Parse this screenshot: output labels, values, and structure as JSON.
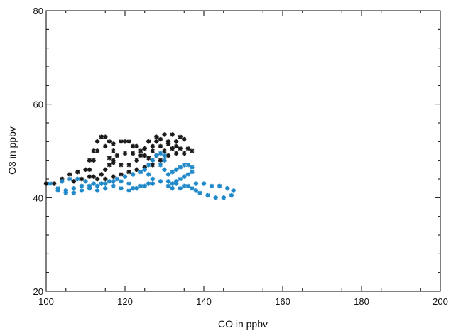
{
  "chart_data": {
    "type": "scatter",
    "title": "",
    "xlabel": "CO in ppbv",
    "ylabel": "O3 in ppbv",
    "xlim": [
      100,
      200
    ],
    "ylim": [
      20,
      80
    ],
    "x_ticks": [
      100,
      120,
      140,
      160,
      180,
      200
    ],
    "y_ticks": [
      20,
      40,
      60,
      80
    ],
    "grid": false,
    "legend": "none",
    "marker": "asterisk",
    "series": [
      {
        "color": "#1a1a1a",
        "points": [
          [
            100,
            43
          ],
          [
            102,
            43
          ],
          [
            104,
            44
          ],
          [
            106,
            45
          ],
          [
            108,
            45.5
          ],
          [
            110,
            46
          ],
          [
            111,
            48
          ],
          [
            112,
            50
          ],
          [
            113,
            52
          ],
          [
            114,
            53
          ],
          [
            115,
            53
          ],
          [
            116,
            52
          ],
          [
            117,
            50
          ],
          [
            117,
            48
          ],
          [
            116,
            47
          ],
          [
            115,
            46
          ],
          [
            114,
            45
          ],
          [
            112,
            44.5
          ],
          [
            111,
            46
          ],
          [
            112,
            48
          ],
          [
            113,
            50
          ],
          [
            115,
            51
          ],
          [
            117,
            51.5
          ],
          [
            119,
            52
          ],
          [
            121,
            52
          ],
          [
            123,
            51
          ],
          [
            125,
            50.5
          ],
          [
            127,
            51
          ],
          [
            128,
            52
          ],
          [
            128,
            53
          ],
          [
            130,
            53.5
          ],
          [
            132,
            53.5
          ],
          [
            134,
            53
          ],
          [
            135,
            52.5
          ],
          [
            133,
            52
          ],
          [
            131,
            51.5
          ],
          [
            129,
            51
          ],
          [
            127,
            50
          ],
          [
            125,
            49
          ],
          [
            123,
            48
          ],
          [
            121,
            47
          ],
          [
            119,
            47
          ],
          [
            117,
            47.5
          ],
          [
            116,
            48.5
          ],
          [
            118,
            49
          ],
          [
            120,
            49.5
          ],
          [
            122,
            49.5
          ],
          [
            124,
            49
          ],
          [
            126,
            48.5
          ],
          [
            128,
            49
          ],
          [
            130,
            50
          ],
          [
            132,
            50.5
          ],
          [
            134,
            50.5
          ],
          [
            136,
            50.5
          ],
          [
            137,
            50
          ],
          [
            135,
            49.5
          ],
          [
            133,
            49.5
          ],
          [
            131,
            49
          ],
          [
            129,
            48
          ],
          [
            127,
            47
          ],
          [
            125,
            46.5
          ],
          [
            123,
            46
          ],
          [
            121,
            45.5
          ],
          [
            119,
            45
          ],
          [
            117,
            44.5
          ],
          [
            115,
            44
          ],
          [
            113,
            44
          ],
          [
            111,
            44.5
          ],
          [
            109,
            44
          ],
          [
            107,
            43.5
          ],
          [
            120,
            52
          ],
          [
            122,
            51
          ],
          [
            124,
            50
          ],
          [
            126,
            52
          ],
          [
            129,
            52.5
          ],
          [
            131,
            52
          ],
          [
            133,
            51
          ]
        ]
      },
      {
        "color": "#1f88c8",
        "points": [
          [
            101,
            43
          ],
          [
            103,
            42
          ],
          [
            105,
            41.5
          ],
          [
            107,
            42
          ],
          [
            109,
            42.5
          ],
          [
            111,
            42
          ],
          [
            113,
            41.5
          ],
          [
            115,
            42
          ],
          [
            117,
            42.5
          ],
          [
            119,
            42
          ],
          [
            121,
            41.5
          ],
          [
            122,
            42
          ],
          [
            124,
            42.5
          ],
          [
            126,
            43
          ],
          [
            127,
            44
          ],
          [
            126,
            45
          ],
          [
            124,
            45.5
          ],
          [
            122,
            45
          ],
          [
            120,
            44.5
          ],
          [
            118,
            44
          ],
          [
            116,
            43.5
          ],
          [
            114,
            43
          ],
          [
            112,
            43
          ],
          [
            110,
            43.5
          ],
          [
            108,
            44
          ],
          [
            106,
            44
          ],
          [
            104,
            43.5
          ],
          [
            125,
            46
          ],
          [
            126,
            47
          ],
          [
            127,
            48
          ],
          [
            128,
            49
          ],
          [
            129,
            49.5
          ],
          [
            130,
            49
          ],
          [
            130,
            48
          ],
          [
            129,
            47
          ],
          [
            130,
            46
          ],
          [
            131,
            45
          ],
          [
            132,
            45.5
          ],
          [
            133,
            46
          ],
          [
            134,
            46.5
          ],
          [
            135,
            47
          ],
          [
            136,
            47
          ],
          [
            137,
            46.5
          ],
          [
            137,
            45.5
          ],
          [
            136,
            45
          ],
          [
            135,
            44.5
          ],
          [
            134,
            44
          ],
          [
            133,
            43.5
          ],
          [
            132,
            43
          ],
          [
            131,
            42.5
          ],
          [
            132,
            42
          ],
          [
            134,
            42
          ],
          [
            136,
            42.5
          ],
          [
            138,
            43
          ],
          [
            140,
            43
          ],
          [
            142,
            42.5
          ],
          [
            144,
            42.5
          ],
          [
            146,
            42
          ],
          [
            147.5,
            41.5
          ],
          [
            147,
            40.5
          ],
          [
            145,
            40
          ],
          [
            143,
            40
          ],
          [
            141,
            40.5
          ],
          [
            139,
            41
          ],
          [
            138,
            41.5
          ],
          [
            137,
            42
          ],
          [
            135,
            42.5
          ],
          [
            133,
            43
          ],
          [
            131,
            43.5
          ],
          [
            129,
            43.5
          ],
          [
            127,
            43
          ],
          [
            125,
            42.5
          ],
          [
            123,
            42
          ],
          [
            121,
            43
          ],
          [
            119,
            43.5
          ],
          [
            117,
            43.5
          ],
          [
            115,
            43
          ],
          [
            113,
            42.5
          ],
          [
            111,
            42.5
          ],
          [
            109,
            41.5
          ],
          [
            107,
            41
          ],
          [
            105,
            41
          ],
          [
            103,
            41.5
          ]
        ]
      }
    ]
  }
}
